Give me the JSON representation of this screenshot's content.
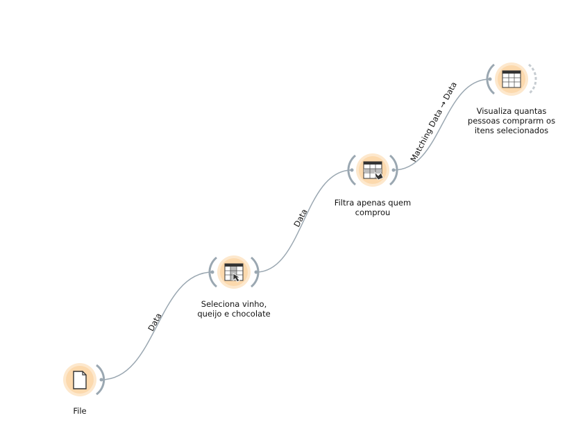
{
  "nodes": [
    {
      "id": "file",
      "label_lines": [
        "File"
      ],
      "icon": "file-icon"
    },
    {
      "id": "select-rows",
      "label_lines": [
        "Seleciona vinho,",
        "queijo e chocolate"
      ],
      "icon": "table-select-icon"
    },
    {
      "id": "filter",
      "label_lines": [
        "Filtra apenas quem",
        "comprou"
      ],
      "icon": "table-filter-icon"
    },
    {
      "id": "viewer",
      "label_lines": [
        "Visualiza quantas",
        "pessoas comprarm os",
        "itens selecionados"
      ],
      "icon": "data-table-icon"
    }
  ],
  "edges": [
    {
      "from": "file",
      "to": "select-rows",
      "label": "Data"
    },
    {
      "from": "select-rows",
      "to": "filter",
      "label": "Data"
    },
    {
      "from": "filter",
      "to": "viewer",
      "label": "Matching Data → Data"
    }
  ],
  "colors": {
    "node_fill": "#fcd9ad",
    "node_ring": "#fde8cd",
    "connector": "#9aa7b1",
    "edge": "#9aa7b1",
    "icon_dark": "#333333"
  }
}
